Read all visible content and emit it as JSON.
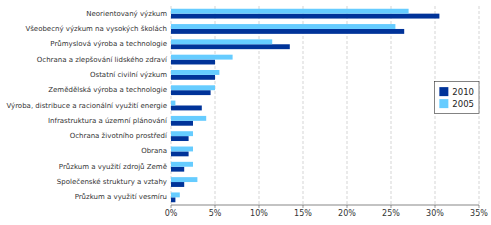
{
  "chart_data": {
    "type": "bar",
    "orientation": "horizontal",
    "categories": [
      "Neorientovaný výzkum",
      "Všeobecný výzkum na vysokých školách",
      "Průmyslová výroba a technologie",
      "Ochrana a zlepšování lidského zdraví",
      "Ostatní civilní výzkum",
      "Zemědělská výroba a technologie",
      "Výroba, distribuce a racionální využití energie",
      "Infrastruktura a územní plánování",
      "Ochrana životního prostředí",
      "Obrana",
      "Průzkum a využití zdrojů Země",
      "Společenské struktury a vztahy",
      "Průzkum a využití vesmíru"
    ],
    "series": [
      {
        "name": "2010",
        "color": "#003399",
        "values": [
          30.5,
          26.5,
          13.5,
          5.0,
          5.0,
          4.5,
          3.5,
          2.5,
          2.0,
          2.0,
          1.5,
          1.5,
          0.5
        ]
      },
      {
        "name": "2005",
        "color": "#66ccff",
        "values": [
          27.0,
          25.5,
          11.5,
          7.0,
          5.5,
          5.0,
          0.5,
          4.0,
          2.5,
          2.5,
          2.5,
          3.0,
          1.0
        ]
      }
    ],
    "xlim": [
      0,
      35
    ],
    "xticks": [
      {
        "value": 0,
        "label": "0%"
      },
      {
        "value": 5,
        "label": "5%"
      },
      {
        "value": 10,
        "label": "10%"
      },
      {
        "value": 15,
        "label": "15%"
      },
      {
        "value": 20,
        "label": "20%"
      },
      {
        "value": 25,
        "label": "25%"
      },
      {
        "value": 30,
        "label": "30%"
      },
      {
        "value": 35,
        "label": "35%"
      }
    ],
    "grid": true,
    "legend": "right"
  }
}
